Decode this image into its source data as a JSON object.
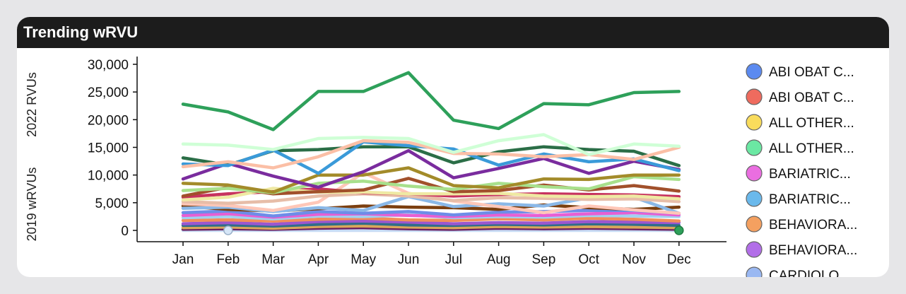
{
  "card": {
    "title": "Trending wRVU"
  },
  "chart_data": {
    "type": "line",
    "title": "Trending wRVU",
    "ylabel_top": "2022 RVUs",
    "ylabel_bottom": "2019 wRVUs",
    "ylim": [
      0,
      30000
    ],
    "y_ticks": [
      "0",
      "5,000",
      "10,000",
      "15,000",
      "20,000",
      "25,000",
      "30,000"
    ],
    "categories": [
      "Jan",
      "Feb",
      "Mar",
      "Apr",
      "May",
      "Jun",
      "Jul",
      "Aug",
      "Sep",
      "Oct",
      "Nov",
      "Dec"
    ],
    "series": [
      {
        "color": "#2ea05a",
        "values": [
          22800,
          21400,
          18200,
          25100,
          25100,
          28500,
          19900,
          18400,
          22900,
          22700,
          24900,
          25100
        ]
      },
      {
        "color": "#cfffd6",
        "values": [
          15600,
          15400,
          14600,
          16600,
          16800,
          16600,
          14100,
          16200,
          17300,
          13700,
          15600,
          15200
        ]
      },
      {
        "color": "#fbbfa6",
        "values": [
          11500,
          12400,
          11300,
          13300,
          16200,
          15900,
          13900,
          13800,
          13300,
          13700,
          12800,
          15000
        ]
      },
      {
        "color": "#3a9ad9",
        "values": [
          12000,
          11700,
          14500,
          10300,
          16000,
          15300,
          14700,
          11800,
          13800,
          12400,
          12900,
          10800
        ]
      },
      {
        "color": "#2b6e47",
        "values": [
          13100,
          11800,
          14400,
          14600,
          15100,
          15100,
          12200,
          14200,
          15100,
          14600,
          14300,
          11700
        ]
      },
      {
        "color": "#7a2c9e",
        "values": [
          9300,
          12100,
          9800,
          7800,
          10600,
          14400,
          9500,
          11200,
          13000,
          10300,
          12500,
          11000
        ]
      },
      {
        "color": "#a38b2a",
        "values": [
          8500,
          8200,
          6900,
          10000,
          10000,
          11300,
          8100,
          7700,
          9300,
          9200,
          10000,
          10000
        ]
      },
      {
        "color": "#a8e08c",
        "values": [
          7200,
          7600,
          6800,
          8500,
          8900,
          8000,
          7400,
          8500,
          7900,
          7500,
          9700,
          9200
        ]
      },
      {
        "color": "#a1502b",
        "values": [
          6200,
          7800,
          6600,
          7000,
          7300,
          9400,
          7000,
          7200,
          8200,
          7300,
          8100,
          7100
        ]
      },
      {
        "color": "#efe9a3",
        "values": [
          5500,
          6000,
          7600,
          6900,
          6900,
          6600,
          6600,
          6700,
          6200,
          6100,
          6200,
          5700
        ]
      },
      {
        "color": "#c7325f",
        "values": [
          6000,
          6600,
          7000,
          7500,
          6800,
          6600,
          6200,
          6500,
          6600,
          6500,
          6400,
          6100
        ]
      },
      {
        "color": "#e7bda8",
        "values": [
          5200,
          4900,
          5300,
          6200,
          6600,
          6200,
          5400,
          5900,
          5800,
          5600,
          5700,
          5200
        ]
      },
      {
        "color": "#ffc7b8",
        "values": [
          4800,
          4500,
          3600,
          5100,
          10400,
          6700,
          5300,
          4300,
          3200,
          4400,
          3700,
          3100
        ]
      },
      {
        "color": "#8ab8e8",
        "values": [
          4000,
          4200,
          3400,
          4100,
          3600,
          6100,
          4300,
          4800,
          4400,
          5900,
          6000,
          3100
        ]
      },
      {
        "color": "#7b3f10",
        "values": [
          4400,
          3800,
          3500,
          3900,
          4400,
          4200,
          4100,
          3800,
          4600,
          4100,
          3800,
          4200
        ]
      },
      {
        "color": "#6d8de8",
        "values": [
          3200,
          3500,
          2600,
          3400,
          3100,
          3400,
          2800,
          3300,
          3400,
          3600,
          3600,
          3100
        ]
      },
      {
        "color": "#e85fd3",
        "values": [
          2700,
          3000,
          2400,
          2900,
          3000,
          2700,
          2500,
          2800,
          2700,
          3000,
          3200,
          2800
        ]
      },
      {
        "color": "#a1d1f0",
        "values": [
          2300,
          2500,
          2100,
          2600,
          2500,
          2800,
          2300,
          2500,
          2400,
          2700,
          2600,
          2500
        ]
      },
      {
        "color": "#f28d5b",
        "values": [
          1800,
          1900,
          1700,
          2000,
          2200,
          1900,
          1800,
          2100,
          1900,
          2200,
          2000,
          1700
        ]
      },
      {
        "color": "#9b57cf",
        "values": [
          1200,
          1400,
          1100,
          1600,
          1700,
          1500,
          1200,
          1400,
          1300,
          1600,
          1500,
          1400
        ]
      },
      {
        "color": "#2f6e88",
        "values": [
          900,
          1000,
          800,
          1100,
          1300,
          1000,
          900,
          1100,
          1000,
          1200,
          1100,
          900
        ]
      },
      {
        "color": "#d9a65b",
        "values": [
          500,
          600,
          400,
          700,
          800,
          600,
          500,
          700,
          600,
          700,
          600,
          500
        ]
      },
      {
        "color": "#6a1f60",
        "values": [
          200,
          300,
          200,
          400,
          500,
          300,
          200,
          400,
          300,
          400,
          300,
          200
        ]
      },
      {
        "color": "#c8dcf5",
        "values": [
          0,
          0,
          0,
          0,
          0,
          0,
          0,
          0,
          0,
          0,
          0,
          0
        ]
      },
      {
        "color": "#2ea05a",
        "values": [
          100,
          100,
          100,
          100,
          100,
          100,
          100,
          100,
          100,
          100,
          100,
          0
        ]
      }
    ],
    "legend": [
      {
        "label": "ABI OBAT C...",
        "color": "#5b8af0"
      },
      {
        "label": "ABI OBAT C...",
        "color": "#ef6b5e"
      },
      {
        "label": "ALL OTHER...",
        "color": "#f9dc5c"
      },
      {
        "label": "ALL OTHER...",
        "color": "#6be8a3"
      },
      {
        "label": "BARIATRIC...",
        "color": "#ea6ee0"
      },
      {
        "label": "BARIATRIC...",
        "color": "#6ab9ec"
      },
      {
        "label": "BEHAVIORA...",
        "color": "#f4a060"
      },
      {
        "label": "BEHAVIORA...",
        "color": "#b26ee8"
      },
      {
        "label": "CARDIOLO...",
        "color": "#9ab8f2"
      }
    ],
    "legend_position": "right",
    "grid": false
  }
}
